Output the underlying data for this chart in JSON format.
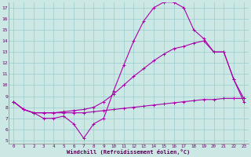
{
  "xlabel": "Windchill (Refroidissement éolien,°C)",
  "bg_color": "#cce8e4",
  "line_color": "#aa00aa",
  "grid_color": "#99cccc",
  "xlim": [
    -0.5,
    23.5
  ],
  "ylim": [
    4.7,
    17.5
  ],
  "yticks": [
    5,
    6,
    7,
    8,
    9,
    10,
    11,
    12,
    13,
    14,
    15,
    16,
    17
  ],
  "xticks": [
    0,
    1,
    2,
    3,
    4,
    5,
    6,
    7,
    8,
    9,
    10,
    11,
    12,
    13,
    14,
    15,
    16,
    17,
    18,
    19,
    20,
    21,
    22,
    23
  ],
  "s1_y": [
    8.5,
    7.8,
    7.5,
    7.5,
    7.5,
    7.5,
    7.5,
    7.5,
    7.6,
    7.7,
    7.8,
    7.9,
    8.0,
    8.1,
    8.2,
    8.3,
    8.4,
    8.5,
    8.6,
    8.7,
    8.7,
    8.8,
    8.8,
    8.8
  ],
  "s2_y": [
    8.5,
    7.8,
    7.5,
    7.5,
    7.5,
    7.6,
    7.7,
    7.8,
    8.0,
    8.5,
    9.2,
    10.0,
    10.8,
    11.5,
    12.2,
    12.8,
    13.3,
    13.5,
    13.8,
    14.0,
    13.0,
    13.0,
    10.5,
    8.8
  ],
  "s3_y": [
    8.5,
    7.8,
    7.5,
    7.0,
    7.0,
    7.2,
    6.5,
    5.2,
    6.5,
    7.0,
    9.5,
    11.8,
    14.0,
    15.8,
    17.0,
    17.5,
    17.5,
    17.0,
    15.0,
    14.2,
    13.0,
    13.0,
    10.5,
    8.5
  ]
}
